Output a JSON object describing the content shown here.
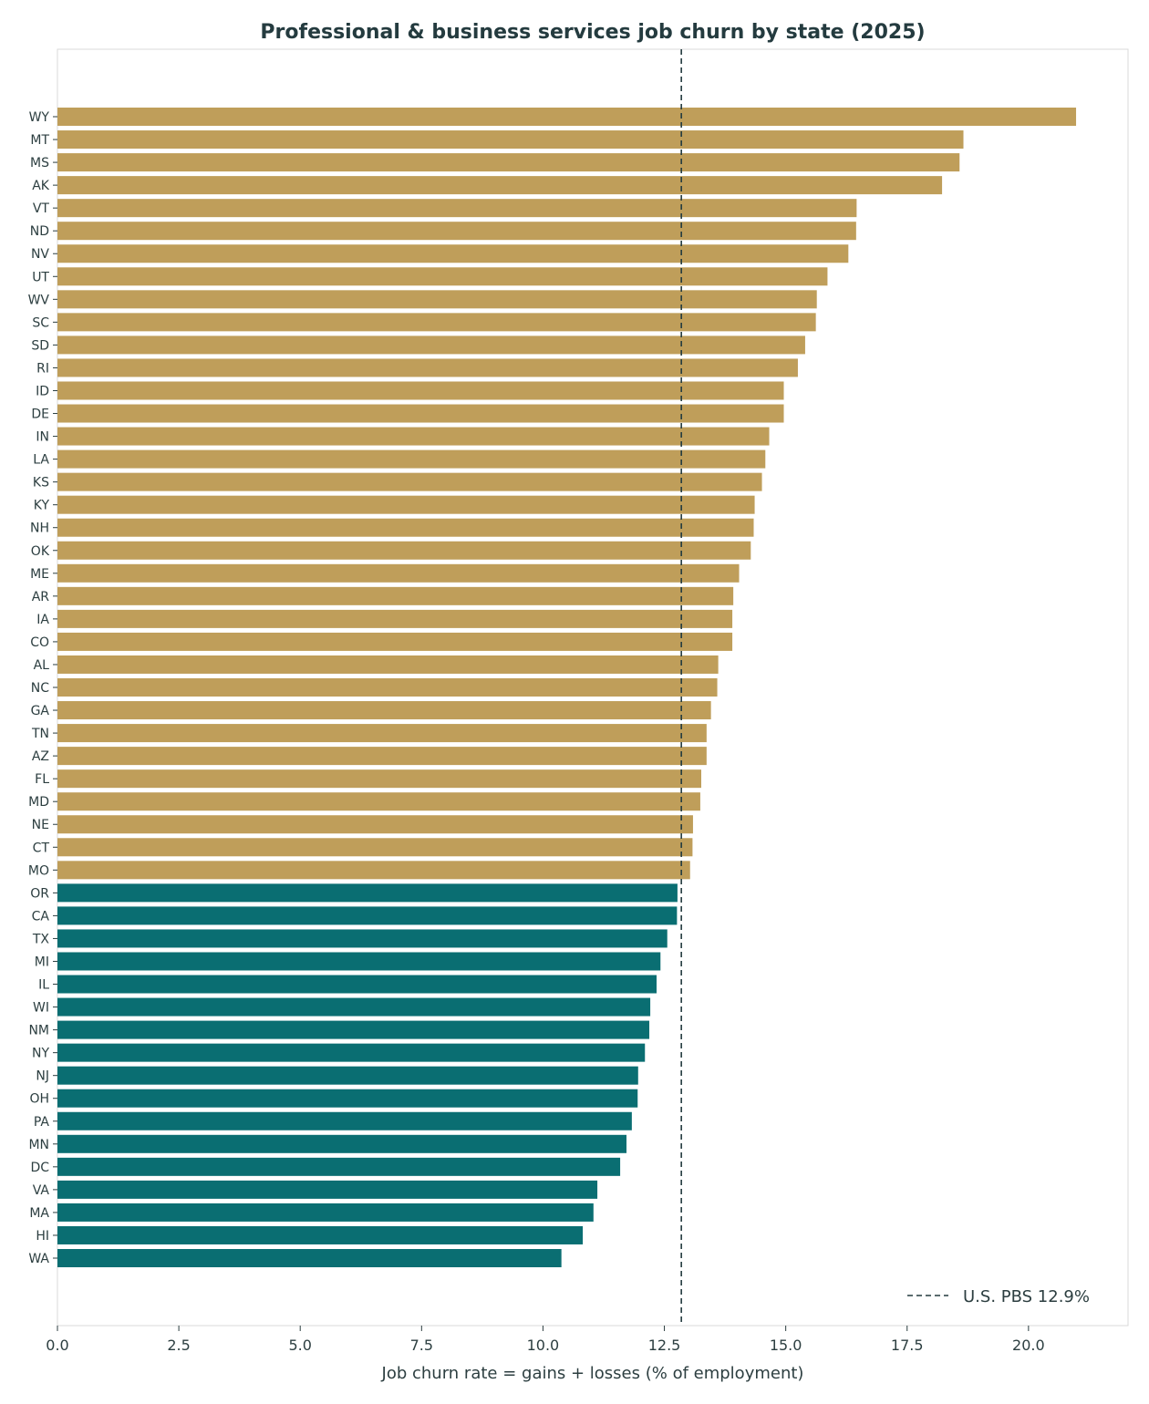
{
  "chart_data": {
    "type": "bar",
    "orientation": "horizontal",
    "title": "Professional & business services job churn by state (2025)",
    "xlabel": "Job churn rate = gains + losses (% of employment)",
    "ylabel": "",
    "xlim": [
      0,
      22.05
    ],
    "x_ticks": [
      "0.0",
      "2.5",
      "5.0",
      "7.5",
      "10.0",
      "12.5",
      "15.0",
      "17.5",
      "20.0"
    ],
    "x_tick_values": [
      0,
      2.5,
      5,
      7.5,
      10,
      12.5,
      15,
      17.5,
      20
    ],
    "grid": false,
    "legend_position": "bottom-right",
    "colors": {
      "above": "#bf9e5a",
      "below": "#0a6e72",
      "reference": "#243b3f"
    },
    "reference_line": {
      "value": 12.85,
      "label": "U.S. PBS 12.9%",
      "style": "dashed"
    },
    "categories": [
      "WY",
      "MT",
      "MS",
      "AK",
      "VT",
      "ND",
      "NV",
      "UT",
      "WV",
      "SC",
      "SD",
      "RI",
      "ID",
      "DE",
      "IN",
      "LA",
      "KS",
      "KY",
      "NH",
      "OK",
      "ME",
      "AR",
      "IA",
      "CO",
      "AL",
      "NC",
      "GA",
      "TN",
      "AZ",
      "FL",
      "MD",
      "NE",
      "CT",
      "MO",
      "OR",
      "CA",
      "TX",
      "MI",
      "IL",
      "WI",
      "NM",
      "NY",
      "NJ",
      "OH",
      "PA",
      "MN",
      "DC",
      "VA",
      "MA",
      "HI",
      "WA"
    ],
    "values": [
      20.98,
      18.66,
      18.58,
      18.22,
      16.46,
      16.45,
      16.29,
      15.86,
      15.64,
      15.62,
      15.4,
      15.25,
      14.96,
      14.96,
      14.66,
      14.58,
      14.51,
      14.36,
      14.34,
      14.28,
      14.04,
      13.92,
      13.9,
      13.9,
      13.61,
      13.59,
      13.46,
      13.37,
      13.37,
      13.26,
      13.24,
      13.09,
      13.08,
      13.03,
      12.77,
      12.76,
      12.56,
      12.42,
      12.34,
      12.21,
      12.19,
      12.1,
      11.96,
      11.95,
      11.83,
      11.72,
      11.59,
      11.12,
      11.04,
      10.82,
      10.38
    ]
  }
}
